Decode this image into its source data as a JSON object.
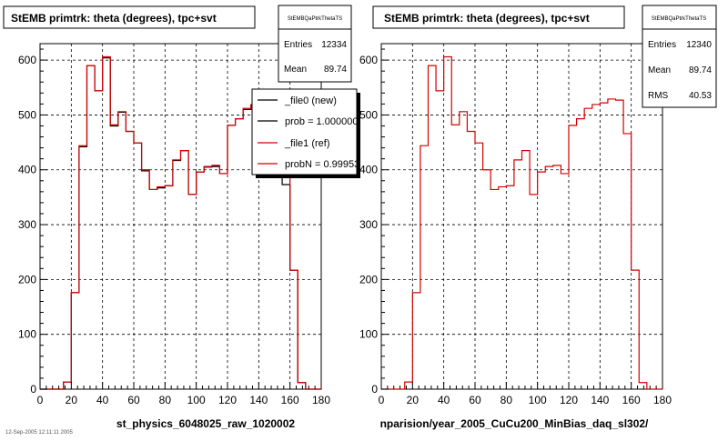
{
  "footer_note": "12-Sep-2005 12:11:11 2005",
  "chart_data": [
    {
      "type": "histogram",
      "title": "StEMB primtrk: theta (degrees), tpc+svt",
      "xlabel": "st_physics_6048025_raw_1020002",
      "xlim": [
        0,
        180
      ],
      "ylim": [
        0,
        630
      ],
      "grid": true,
      "x_ticks": [
        0,
        20,
        40,
        60,
        80,
        100,
        120,
        140,
        160,
        180
      ],
      "y_ticks": [
        0,
        100,
        200,
        300,
        400,
        500,
        600
      ],
      "bin_edges": [
        0,
        5,
        10,
        15,
        20,
        25,
        30,
        35,
        40,
        45,
        50,
        55,
        60,
        65,
        70,
        75,
        80,
        85,
        90,
        95,
        100,
        105,
        110,
        115,
        120,
        125,
        130,
        135,
        140,
        145,
        150,
        155,
        160,
        165,
        170,
        175,
        180
      ],
      "series": [
        {
          "name": "_file0 (new)",
          "color": "#000000",
          "values": [
            0,
            0,
            0,
            13,
            176,
            442,
            590,
            544,
            604,
            480,
            505,
            470,
            449,
            398,
            364,
            367,
            371,
            417,
            435,
            355,
            396,
            405,
            406,
            393,
            481,
            493,
            510,
            517,
            522,
            527,
            466,
            373,
            217,
            12,
            0,
            0
          ]
        },
        {
          "name": "_file1 (ref)",
          "color": "#d40000",
          "values": [
            0,
            0,
            0,
            13,
            176,
            444,
            590,
            544,
            606,
            482,
            506,
            470,
            449,
            400,
            364,
            369,
            371,
            418,
            435,
            355,
            396,
            406,
            408,
            393,
            481,
            493,
            512,
            519,
            522,
            529,
            527,
            466,
            217,
            12,
            0,
            0
          ]
        }
      ],
      "stats": {
        "header": "StEMBQaPtrkThetaTS",
        "rows": [
          {
            "label": "Entries",
            "value": "12334"
          },
          {
            "label": "Mean",
            "value": "89.74"
          }
        ]
      },
      "legend": {
        "position": "top-right",
        "entries": [
          "_file0 (new)",
          "prob = 1.000000",
          "_file1 (ref)",
          "probN = 0.99953"
        ]
      }
    },
    {
      "type": "histogram",
      "title": "StEMB primtrk: theta (degrees), tpc+svt",
      "xlabel": "nparision/year_2005_CuCu200_MinBias_daq_sl302/",
      "xlim": [
        0,
        180
      ],
      "ylim": [
        0,
        630
      ],
      "grid": true,
      "x_ticks": [
        0,
        20,
        40,
        60,
        80,
        100,
        120,
        140,
        160,
        180
      ],
      "y_ticks": [
        0,
        100,
        200,
        300,
        400,
        500,
        600
      ],
      "bin_edges": [
        0,
        5,
        10,
        15,
        20,
        25,
        30,
        35,
        40,
        45,
        50,
        55,
        60,
        65,
        70,
        75,
        80,
        85,
        90,
        95,
        100,
        105,
        110,
        115,
        120,
        125,
        130,
        135,
        140,
        145,
        150,
        155,
        160,
        165,
        170,
        175,
        180
      ],
      "series": [
        {
          "name": "_file1 (ref)",
          "color": "#d40000",
          "values": [
            0,
            0,
            0,
            13,
            176,
            444,
            590,
            544,
            606,
            482,
            506,
            470,
            449,
            400,
            364,
            369,
            371,
            418,
            435,
            355,
            396,
            406,
            408,
            393,
            481,
            493,
            512,
            519,
            522,
            529,
            527,
            466,
            217,
            12,
            0,
            0
          ]
        }
      ],
      "stats": {
        "header": "StEMBQaPtrkThetaTS",
        "rows": [
          {
            "label": "Entries",
            "value": "12340"
          },
          {
            "label": "Mean",
            "value": "89.74"
          },
          {
            "label": "RMS",
            "value": "40.53"
          }
        ]
      }
    }
  ]
}
